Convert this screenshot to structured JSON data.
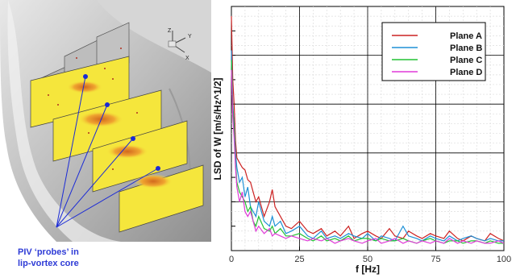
{
  "left_figure": {
    "caption_line1": "PIV ‘probes’ in",
    "caption_line2": "lip-vortex core",
    "axis_z": "Z",
    "axis_y": "Y",
    "axis_x": "X",
    "colors": {
      "plane_fill": "#f5e63c",
      "hotspot": "#e08a1a",
      "probe_line": "#1b2bd6",
      "surface": "#c8c8c8"
    }
  },
  "chart_data": {
    "type": "line",
    "xlabel": "f [Hz]",
    "ylabel": "LSD of W [m/s/Hz^1/2]",
    "xlim": [
      0,
      100
    ],
    "xticks": [
      0,
      25,
      50,
      75,
      100
    ],
    "yticks": [],
    "grid": true,
    "legend_position": "top-right",
    "series": [
      {
        "name": "Plane A",
        "color": "#cc2222",
        "x": [
          0,
          0.5,
          1,
          1.5,
          2,
          3,
          4,
          5,
          6,
          7,
          8,
          9,
          10,
          12,
          14,
          15,
          16,
          18,
          20,
          22,
          25,
          28,
          30,
          33,
          35,
          38,
          40,
          43,
          45,
          48,
          50,
          53,
          55,
          58,
          60,
          63,
          65,
          68,
          70,
          73,
          75,
          78,
          80,
          83,
          85,
          88,
          90,
          93,
          95,
          98,
          100
        ],
        "y": [
          0.96,
          0.7,
          0.6,
          0.45,
          0.38,
          0.36,
          0.34,
          0.33,
          0.29,
          0.28,
          0.24,
          0.2,
          0.22,
          0.14,
          0.2,
          0.25,
          0.18,
          0.14,
          0.1,
          0.09,
          0.12,
          0.08,
          0.07,
          0.09,
          0.06,
          0.08,
          0.06,
          0.1,
          0.05,
          0.07,
          0.08,
          0.06,
          0.05,
          0.09,
          0.06,
          0.05,
          0.08,
          0.06,
          0.05,
          0.07,
          0.06,
          0.05,
          0.08,
          0.05,
          0.04,
          0.06,
          0.05,
          0.04,
          0.07,
          0.05,
          0.04
        ]
      },
      {
        "name": "Plane B",
        "color": "#1e90d6",
        "x": [
          0,
          0.5,
          1,
          1.5,
          2,
          3,
          4,
          5,
          6,
          7,
          8,
          9,
          10,
          12,
          14,
          15,
          16,
          18,
          20,
          22,
          25,
          28,
          30,
          33,
          35,
          38,
          40,
          43,
          45,
          48,
          50,
          53,
          55,
          58,
          60,
          63,
          65,
          68,
          70,
          73,
          75,
          78,
          80,
          83,
          85,
          88,
          90,
          93,
          95,
          98,
          100
        ],
        "y": [
          0.82,
          0.6,
          0.52,
          0.4,
          0.34,
          0.28,
          0.3,
          0.22,
          0.26,
          0.18,
          0.16,
          0.14,
          0.2,
          0.12,
          0.1,
          0.14,
          0.1,
          0.12,
          0.07,
          0.08,
          0.1,
          0.06,
          0.05,
          0.08,
          0.05,
          0.06,
          0.05,
          0.07,
          0.06,
          0.05,
          0.07,
          0.04,
          0.06,
          0.05,
          0.04,
          0.1,
          0.06,
          0.05,
          0.04,
          0.06,
          0.05,
          0.04,
          0.06,
          0.04,
          0.05,
          0.06,
          0.05,
          0.04,
          0.05,
          0.04,
          0.04
        ]
      },
      {
        "name": "Plane C",
        "color": "#22c233",
        "x": [
          0,
          0.5,
          1,
          1.5,
          2,
          3,
          4,
          5,
          6,
          7,
          8,
          9,
          10,
          12,
          14,
          15,
          16,
          18,
          20,
          22,
          25,
          28,
          30,
          33,
          35,
          38,
          40,
          43,
          45,
          48,
          50,
          53,
          55,
          58,
          60,
          63,
          65,
          68,
          70,
          73,
          75,
          78,
          80,
          83,
          85,
          88,
          90,
          93,
          95,
          98,
          100
        ],
        "y": [
          0.78,
          0.58,
          0.5,
          0.36,
          0.28,
          0.24,
          0.22,
          0.2,
          0.16,
          0.18,
          0.12,
          0.1,
          0.14,
          0.09,
          0.08,
          0.1,
          0.07,
          0.09,
          0.06,
          0.06,
          0.07,
          0.05,
          0.04,
          0.06,
          0.04,
          0.05,
          0.04,
          0.06,
          0.04,
          0.05,
          0.05,
          0.04,
          0.05,
          0.04,
          0.04,
          0.05,
          0.04,
          0.03,
          0.04,
          0.05,
          0.04,
          0.03,
          0.04,
          0.04,
          0.03,
          0.04,
          0.04,
          0.03,
          0.04,
          0.03,
          0.03
        ]
      },
      {
        "name": "Plane D",
        "color": "#e03ad8",
        "x": [
          0,
          0.5,
          1,
          1.5,
          2,
          3,
          4,
          5,
          6,
          7,
          8,
          9,
          10,
          12,
          14,
          15,
          16,
          18,
          20,
          22,
          25,
          28,
          30,
          33,
          35,
          38,
          40,
          43,
          45,
          48,
          50,
          53,
          55,
          58,
          60,
          63,
          65,
          68,
          70,
          73,
          75,
          78,
          80,
          83,
          85,
          88,
          90,
          93,
          95,
          98,
          100
        ],
        "y": [
          0.74,
          0.55,
          0.46,
          0.34,
          0.26,
          0.2,
          0.24,
          0.16,
          0.14,
          0.16,
          0.12,
          0.08,
          0.1,
          0.07,
          0.09,
          0.06,
          0.07,
          0.06,
          0.05,
          0.06,
          0.05,
          0.04,
          0.05,
          0.04,
          0.05,
          0.03,
          0.04,
          0.05,
          0.04,
          0.03,
          0.04,
          0.05,
          0.03,
          0.04,
          0.05,
          0.03,
          0.04,
          0.03,
          0.04,
          0.03,
          0.04,
          0.03,
          0.05,
          0.03,
          0.04,
          0.03,
          0.04,
          0.03,
          0.03,
          0.04,
          0.03
        ]
      }
    ]
  }
}
